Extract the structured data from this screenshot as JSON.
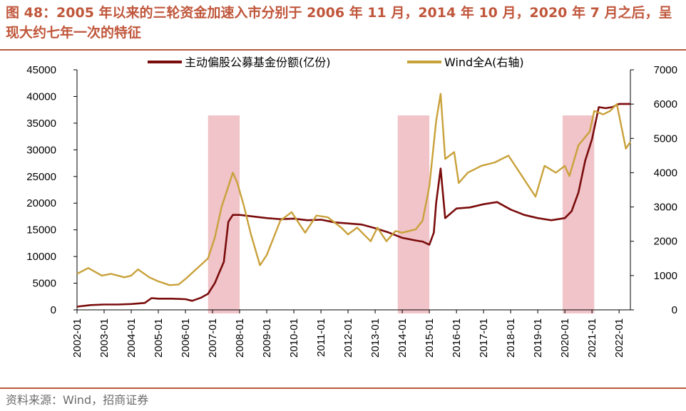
{
  "header": {
    "title": "图 48：2005 年以来的三轮资金加速入市分别于 2006 年 11 月，2014 年 10 月，2020 年 7 月之后，呈现大约七年一次的特征"
  },
  "footer": {
    "source": "资料来源：Wind，招商证券"
  },
  "chart_data": {
    "type": "line",
    "title": "",
    "xlabel": "",
    "ylabel": "",
    "ylabel_right": "",
    "legend_position": "top-center",
    "grid": false,
    "colors": {
      "fund": "#7b0c0c",
      "wind": "#c9a13a",
      "shade": "#f0c4c8",
      "rule": "#b85a3f",
      "title": "#c0563b"
    },
    "x_tick_labels": [
      "2002-01",
      "2003-01",
      "2004-01",
      "2005-01",
      "2006-01",
      "2007-01",
      "2008-01",
      "2009-01",
      "2010-01",
      "2011-01",
      "2012-01",
      "2013-01",
      "2014-01",
      "2015-01",
      "2016-01",
      "2017-01",
      "2018-01",
      "2019-01",
      "2020-01",
      "2021-01",
      "2022-01"
    ],
    "x_range": [
      "2002-01",
      "2022-06"
    ],
    "y_left": {
      "ticks": [
        0,
        5000,
        10000,
        15000,
        20000,
        25000,
        30000,
        35000,
        40000,
        45000
      ],
      "ylim": [
        0,
        45000
      ]
    },
    "y_right": {
      "ticks": [
        0,
        1000,
        2000,
        3000,
        4000,
        5000,
        6000,
        7000
      ],
      "ylim": [
        0,
        7000
      ]
    },
    "shaded_periods": [
      {
        "start": "2006-11",
        "end": "2008-01"
      },
      {
        "start": "2013-11",
        "end": "2015-01"
      },
      {
        "start": "2019-12",
        "end": "2021-02"
      }
    ],
    "series": [
      {
        "name": "主动偏股公募基金份额(亿份)",
        "axis": "left",
        "points": [
          [
            "2002-01",
            600
          ],
          [
            "2002-07",
            900
          ],
          [
            "2003-01",
            1000
          ],
          [
            "2003-07",
            1000
          ],
          [
            "2004-01",
            1100
          ],
          [
            "2004-07",
            1300
          ],
          [
            "2004-10",
            2200
          ],
          [
            "2005-01",
            2100
          ],
          [
            "2005-07",
            2100
          ],
          [
            "2006-01",
            2000
          ],
          [
            "2006-04",
            1700
          ],
          [
            "2006-08",
            2300
          ],
          [
            "2006-11",
            3000
          ],
          [
            "2007-02",
            5000
          ],
          [
            "2007-04",
            7000
          ],
          [
            "2007-06",
            9000
          ],
          [
            "2007-08",
            16500
          ],
          [
            "2007-10",
            17800
          ],
          [
            "2008-01",
            17800
          ],
          [
            "2008-07",
            17500
          ],
          [
            "2009-01",
            17200
          ],
          [
            "2009-07",
            17000
          ],
          [
            "2010-01",
            17100
          ],
          [
            "2010-07",
            16800
          ],
          [
            "2011-01",
            16900
          ],
          [
            "2011-07",
            16400
          ],
          [
            "2012-01",
            16200
          ],
          [
            "2012-07",
            16000
          ],
          [
            "2013-01",
            15300
          ],
          [
            "2013-07",
            14500
          ],
          [
            "2014-01",
            13500
          ],
          [
            "2014-07",
            13000
          ],
          [
            "2014-10",
            12800
          ],
          [
            "2015-01",
            12200
          ],
          [
            "2015-03",
            14500
          ],
          [
            "2015-04",
            20000
          ],
          [
            "2015-06",
            26500
          ],
          [
            "2015-08",
            17200
          ],
          [
            "2016-01",
            19000
          ],
          [
            "2016-07",
            19200
          ],
          [
            "2017-01",
            19800
          ],
          [
            "2017-07",
            20200
          ],
          [
            "2018-01",
            18800
          ],
          [
            "2018-07",
            17800
          ],
          [
            "2019-01",
            17200
          ],
          [
            "2019-07",
            16800
          ],
          [
            "2020-01",
            17200
          ],
          [
            "2020-04",
            18500
          ],
          [
            "2020-07",
            22000
          ],
          [
            "2020-10",
            28000
          ],
          [
            "2021-01",
            32000
          ],
          [
            "2021-04",
            38000
          ],
          [
            "2021-07",
            37800
          ],
          [
            "2021-10",
            38000
          ],
          [
            "2022-01",
            38600
          ],
          [
            "2022-06",
            38600
          ]
        ]
      },
      {
        "name": "Wind全A(右轴)",
        "axis": "right",
        "points": [
          [
            "2002-01",
            1050
          ],
          [
            "2002-06",
            1220
          ],
          [
            "2002-12",
            1000
          ],
          [
            "2003-04",
            1050
          ],
          [
            "2003-10",
            950
          ],
          [
            "2004-01",
            1000
          ],
          [
            "2004-04",
            1180
          ],
          [
            "2004-09",
            950
          ],
          [
            "2005-01",
            830
          ],
          [
            "2005-06",
            720
          ],
          [
            "2005-10",
            740
          ],
          [
            "2006-01",
            900
          ],
          [
            "2006-06",
            1200
          ],
          [
            "2006-11",
            1500
          ],
          [
            "2007-02",
            2100
          ],
          [
            "2007-05",
            3000
          ],
          [
            "2007-08",
            3600
          ],
          [
            "2007-10",
            4000
          ],
          [
            "2007-12",
            3700
          ],
          [
            "2008-03",
            3000
          ],
          [
            "2008-06",
            2200
          ],
          [
            "2008-10",
            1300
          ],
          [
            "2009-01",
            1600
          ],
          [
            "2009-07",
            2600
          ],
          [
            "2009-12",
            2850
          ],
          [
            "2010-06",
            2250
          ],
          [
            "2010-11",
            2750
          ],
          [
            "2011-04",
            2700
          ],
          [
            "2011-10",
            2400
          ],
          [
            "2012-01",
            2200
          ],
          [
            "2012-05",
            2400
          ],
          [
            "2012-11",
            2000
          ],
          [
            "2013-02",
            2400
          ],
          [
            "2013-06",
            2000
          ],
          [
            "2013-10",
            2300
          ],
          [
            "2014-01",
            2250
          ],
          [
            "2014-07",
            2350
          ],
          [
            "2014-10",
            2600
          ],
          [
            "2015-01",
            3600
          ],
          [
            "2015-04",
            5500
          ],
          [
            "2015-06",
            6300
          ],
          [
            "2015-08",
            4400
          ],
          [
            "2015-12",
            4600
          ],
          [
            "2016-02",
            3700
          ],
          [
            "2016-06",
            4000
          ],
          [
            "2016-12",
            4200
          ],
          [
            "2017-06",
            4300
          ],
          [
            "2017-12",
            4500
          ],
          [
            "2018-06",
            3900
          ],
          [
            "2018-12",
            3300
          ],
          [
            "2019-04",
            4200
          ],
          [
            "2019-09",
            4000
          ],
          [
            "2020-01",
            4200
          ],
          [
            "2020-03",
            3900
          ],
          [
            "2020-07",
            4800
          ],
          [
            "2020-12",
            5200
          ],
          [
            "2021-02",
            5800
          ],
          [
            "2021-06",
            5700
          ],
          [
            "2021-09",
            5800
          ],
          [
            "2021-12",
            6000
          ],
          [
            "2022-04",
            4700
          ],
          [
            "2022-06",
            4900
          ]
        ]
      }
    ]
  }
}
